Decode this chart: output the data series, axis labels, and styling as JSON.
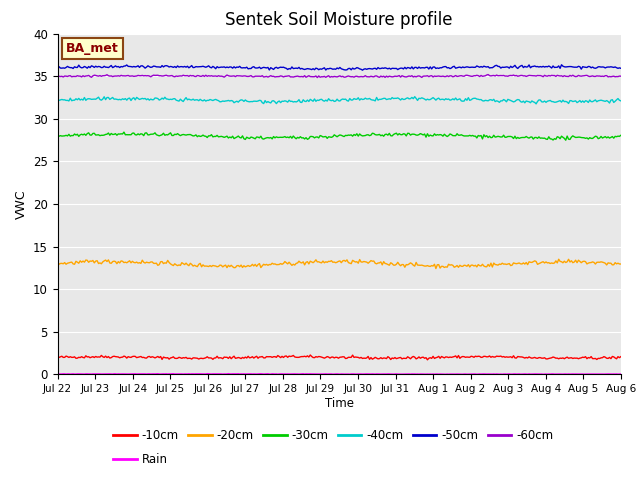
{
  "title": "Sentek Soil Moisture profile",
  "xlabel": "Time",
  "ylabel": "VWC",
  "ylim": [
    0,
    40
  ],
  "xlim_days": 15.5,
  "background_color": "#e8e8e8",
  "annotation_text": "BA_met",
  "annotation_bbox": {
    "facecolor": "#ffffcc",
    "edgecolor": "#8b4513",
    "boxstyle": "square,pad=0.3"
  },
  "annotation_fontsize": 9,
  "annotation_color": "#8b0000",
  "series": [
    {
      "label": "-10cm",
      "color": "#ff0000",
      "mean": 2.0,
      "noise_scale": 0.08,
      "wave_amp": 0.08,
      "wave_freq": 6,
      "trend": -0.02
    },
    {
      "label": "-20cm",
      "color": "#ffa500",
      "mean": 13.0,
      "noise_scale": 0.12,
      "wave_amp": 0.25,
      "wave_freq": 5,
      "trend": -0.05
    },
    {
      "label": "-30cm",
      "color": "#00cc00",
      "mean": 28.0,
      "noise_scale": 0.1,
      "wave_amp": 0.2,
      "wave_freq": 4,
      "trend": -0.08
    },
    {
      "label": "-40cm",
      "color": "#00cccc",
      "mean": 32.2,
      "noise_scale": 0.1,
      "wave_amp": 0.15,
      "wave_freq": 4,
      "trend": -0.02
    },
    {
      "label": "-50cm",
      "color": "#0000cc",
      "mean": 36.0,
      "noise_scale": 0.08,
      "wave_amp": 0.12,
      "wave_freq": 3,
      "trend": -0.01
    },
    {
      "label": "-60cm",
      "color": "#9900cc",
      "mean": 35.0,
      "noise_scale": 0.05,
      "wave_amp": 0.05,
      "wave_freq": 3,
      "trend": 0.0
    },
    {
      "label": "Rain",
      "color": "#ff00ff",
      "mean": 0.05,
      "noise_scale": 0.01,
      "wave_amp": 0.01,
      "wave_freq": 2,
      "trend": 0.0
    }
  ],
  "x_tick_labels": [
    "Jul 22",
    "Jul 23",
    "Jul 24",
    "Jul 25",
    "Jul 26",
    "Jul 27",
    "Jul 28",
    "Jul 29",
    "Jul 30",
    "Jul 31",
    "Aug 1",
    "Aug 2",
    "Aug 3",
    "Aug 4",
    "Aug 5",
    "Aug 6"
  ],
  "n_points": 400,
  "legend_row1_ncol": 6,
  "legend_fontsize": 8.5,
  "title_fontsize": 12,
  "linewidth": 1.0
}
